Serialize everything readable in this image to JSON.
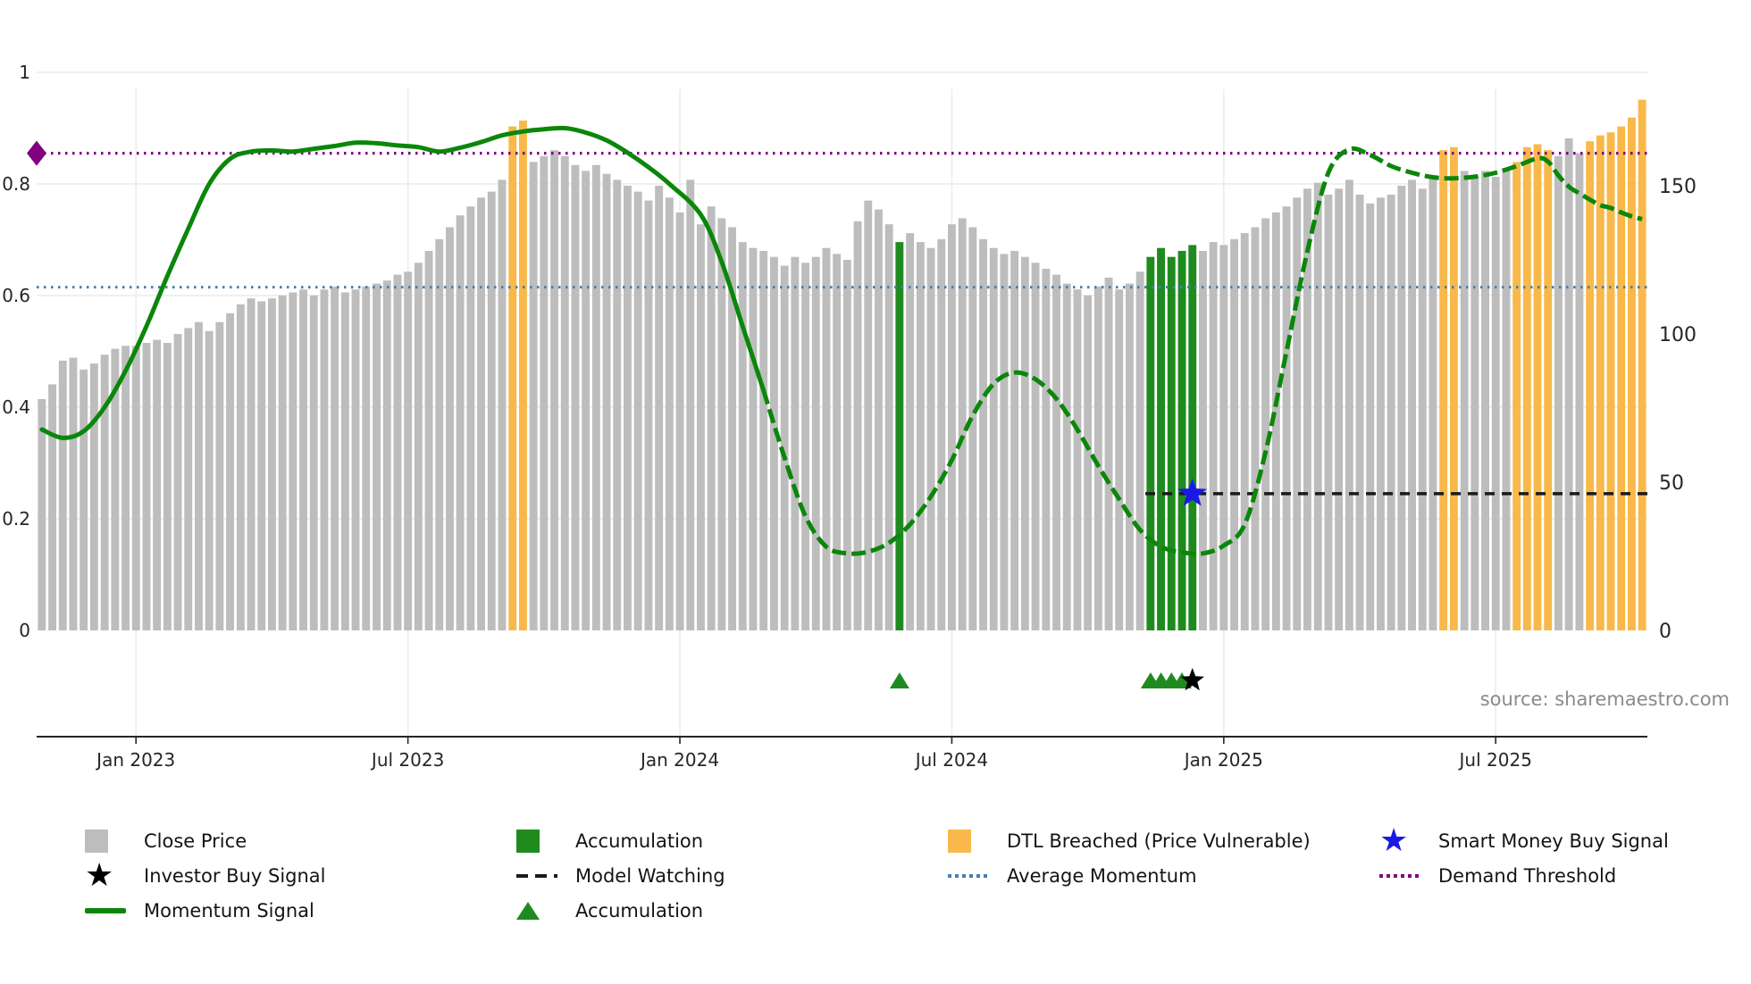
{
  "source": "source: sharemaestro.com",
  "chart_data": {
    "type": "bar",
    "title": "",
    "xlabel": "",
    "ylabel_left_range": [
      0,
      1
    ],
    "ylabel_right_range": [
      0,
      180
    ],
    "x_ticks": [
      {
        "label": "Jan 2023",
        "index": 9
      },
      {
        "label": "Jul 2023",
        "index": 35
      },
      {
        "label": "Jan 2024",
        "index": 61
      },
      {
        "label": "Jul 2024",
        "index": 87
      },
      {
        "label": "Jan 2025",
        "index": 113
      },
      {
        "label": "Jul 2025",
        "index": 139
      }
    ],
    "left_axis": {
      "labels": [
        "0",
        "0.2",
        "0.4",
        "0.6",
        "0.8",
        "1"
      ],
      "values": [
        0,
        0.2,
        0.4,
        0.6,
        0.8,
        1
      ]
    },
    "right_axis": {
      "labels": [
        "0",
        "50",
        "100",
        "150"
      ],
      "values": [
        0,
        50,
        100,
        150
      ]
    },
    "bars": {
      "name": "Close Price",
      "values": [
        78,
        83,
        91,
        92,
        88,
        90,
        93,
        95,
        96,
        96,
        97,
        98,
        97,
        100,
        102,
        104,
        101,
        104,
        107,
        110,
        112,
        111,
        112,
        113,
        114,
        115,
        113,
        115,
        116,
        114,
        115,
        116,
        117,
        118,
        120,
        121,
        124,
        128,
        132,
        136,
        140,
        143,
        146,
        148,
        152,
        170,
        172,
        158,
        160,
        162,
        160,
        157,
        155,
        157,
        154,
        152,
        150,
        148,
        145,
        150,
        146,
        141,
        152,
        137,
        143,
        139,
        136,
        131,
        129,
        128,
        126,
        123,
        126,
        124,
        126,
        129,
        127,
        125,
        138,
        145,
        142,
        137,
        131,
        134,
        131,
        129,
        132,
        137,
        139,
        136,
        132,
        129,
        127,
        128,
        126,
        124,
        122,
        120,
        117,
        115,
        113,
        116,
        119,
        115,
        117,
        121,
        126,
        129,
        126,
        128,
        130,
        128,
        131,
        130,
        132,
        134,
        136,
        139,
        141,
        143,
        146,
        149,
        151,
        147,
        149,
        152,
        147,
        144,
        146,
        147,
        150,
        152,
        149,
        153,
        162,
        163,
        155,
        153,
        155,
        153,
        156,
        158,
        163,
        164,
        162,
        160,
        166,
        161,
        165,
        167,
        168,
        170,
        173,
        179
      ],
      "orange_indices": [
        45,
        46,
        134,
        135,
        141,
        142,
        143,
        144,
        148,
        149,
        150,
        151,
        152,
        153
      ],
      "green_indices": [
        82,
        106,
        107,
        108,
        109,
        110
      ]
    },
    "momentum": {
      "name": "Momentum Signal",
      "anchors": [
        [
          0,
          0.36
        ],
        [
          2,
          0.345
        ],
        [
          4,
          0.357
        ],
        [
          6,
          0.4
        ],
        [
          8,
          0.465
        ],
        [
          10,
          0.545
        ],
        [
          12,
          0.635
        ],
        [
          14,
          0.72
        ],
        [
          16,
          0.8
        ],
        [
          18,
          0.845
        ],
        [
          20,
          0.858
        ],
        [
          22,
          0.86
        ],
        [
          24,
          0.858
        ],
        [
          26,
          0.863
        ],
        [
          28,
          0.868
        ],
        [
          30,
          0.874
        ],
        [
          32,
          0.873
        ],
        [
          34,
          0.869
        ],
        [
          36,
          0.866
        ],
        [
          38,
          0.858
        ],
        [
          40,
          0.865
        ],
        [
          42,
          0.875
        ],
        [
          44,
          0.887
        ],
        [
          46,
          0.894
        ],
        [
          48,
          0.898
        ],
        [
          50,
          0.9
        ],
        [
          52,
          0.892
        ],
        [
          54,
          0.878
        ],
        [
          56,
          0.856
        ],
        [
          58,
          0.83
        ],
        [
          60,
          0.8
        ],
        [
          63,
          0.745
        ],
        [
          65,
          0.66
        ],
        [
          67,
          0.545
        ],
        [
          69,
          0.43
        ],
        [
          71,
          0.31
        ],
        [
          73,
          0.205
        ],
        [
          75,
          0.15
        ],
        [
          77,
          0.138
        ],
        [
          79,
          0.141
        ],
        [
          81,
          0.157
        ],
        [
          83,
          0.19
        ],
        [
          85,
          0.24
        ],
        [
          87,
          0.305
        ],
        [
          89,
          0.385
        ],
        [
          91,
          0.442
        ],
        [
          93,
          0.462
        ],
        [
          95,
          0.45
        ],
        [
          97,
          0.415
        ],
        [
          99,
          0.36
        ],
        [
          101,
          0.295
        ],
        [
          103,
          0.235
        ],
        [
          105,
          0.18
        ],
        [
          107,
          0.15
        ],
        [
          109,
          0.14
        ],
        [
          111,
          0.138
        ],
        [
          113,
          0.152
        ],
        [
          115,
          0.19
        ],
        [
          117,
          0.32
        ],
        [
          119,
          0.5
        ],
        [
          121,
          0.68
        ],
        [
          123,
          0.82
        ],
        [
          125,
          0.862
        ],
        [
          127,
          0.852
        ],
        [
          129,
          0.832
        ],
        [
          131,
          0.82
        ],
        [
          133,
          0.812
        ],
        [
          135,
          0.81
        ],
        [
          137,
          0.813
        ],
        [
          139,
          0.82
        ],
        [
          141,
          0.832
        ],
        [
          143,
          0.846
        ],
        [
          144,
          0.84
        ],
        [
          145,
          0.815
        ],
        [
          146,
          0.795
        ],
        [
          147,
          0.783
        ],
        [
          148,
          0.772
        ],
        [
          149,
          0.762
        ],
        [
          150,
          0.757
        ],
        [
          151,
          0.749
        ],
        [
          152,
          0.742
        ],
        [
          153,
          0.737
        ]
      ],
      "dashed_from_index": 69
    },
    "overlays": {
      "demand_threshold": 0.855,
      "average_momentum": 0.615,
      "model_watching": {
        "value": 0.245,
        "start_index": 106
      }
    },
    "markers": {
      "accumulation_indices": [
        82,
        106,
        107,
        108,
        109
      ],
      "investor_buy_index": 110,
      "smart_money": {
        "index": 110,
        "value": 0.245
      }
    },
    "colors": {
      "bar": "#bdbdbd",
      "dtl": "#F8B94A",
      "accum": "#1F8B1F",
      "momentum": "#0A870A",
      "avg": "#4A7EB0",
      "demand": "#800080",
      "watch": "#1A1A1A",
      "smart": "#1A1AE6",
      "investor": "#000000",
      "grid": "#ECECEC",
      "axis": "#262626"
    }
  },
  "legend": {
    "rows": [
      [
        {
          "key": "close-price",
          "icon": "square",
          "color": "bar",
          "label": "Close Price"
        },
        {
          "key": "accumulation-bar",
          "icon": "square",
          "color": "accum",
          "label": "Accumulation"
        },
        {
          "key": "dtl-breached",
          "icon": "square",
          "color": "dtl",
          "label": "DTL Breached (Price Vulnerable)"
        },
        {
          "key": "smart-money",
          "icon": "star",
          "color": "smart",
          "label": "Smart Money Buy Signal"
        }
      ],
      [
        {
          "key": "investor-buy",
          "icon": "star",
          "color": "investor",
          "label": "Investor Buy Signal"
        },
        {
          "key": "model-watching",
          "icon": "dash-line",
          "color": "watch",
          "label": "Model Watching"
        },
        {
          "key": "average-momentum",
          "icon": "dot-line",
          "color": "avg",
          "label": "Average Momentum"
        },
        {
          "key": "demand-threshold",
          "icon": "dot-line",
          "color": "demand",
          "label": "Demand Threshold"
        }
      ],
      [
        {
          "key": "momentum-signal",
          "icon": "solid-line",
          "color": "momentum",
          "label": "Momentum Signal"
        },
        {
          "key": "accumulation-marker",
          "icon": "triangle",
          "color": "accum",
          "label": "Accumulation"
        }
      ]
    ]
  }
}
